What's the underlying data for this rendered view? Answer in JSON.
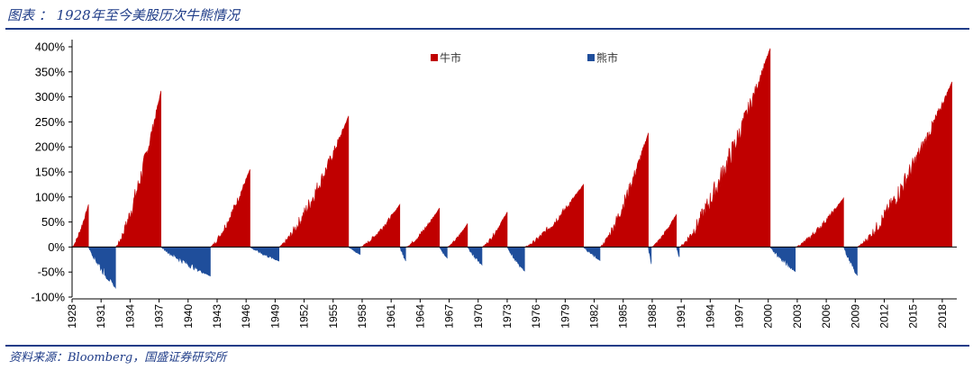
{
  "header": {
    "title": "图表 ： 1928年至今美股历次牛熊情况"
  },
  "footer": {
    "source": "资料来源：Bloomberg，国盛证券研究所"
  },
  "chart_data": {
    "type": "area",
    "title": "",
    "xlabel": "",
    "ylabel": "",
    "ylim": [
      -100,
      400
    ],
    "yticks": [
      -100,
      -50,
      0,
      50,
      100,
      150,
      200,
      250,
      300,
      350,
      400
    ],
    "ytick_labels": [
      "-100%",
      "-50%",
      "0%",
      "50%",
      "100%",
      "150%",
      "200%",
      "250%",
      "300%",
      "350%",
      "400%"
    ],
    "xlim": [
      1928,
      2019.5
    ],
    "xticks": [
      1928,
      1931,
      1934,
      1937,
      1940,
      1943,
      1946,
      1949,
      1952,
      1955,
      1958,
      1961,
      1964,
      1967,
      1970,
      1973,
      1976,
      1979,
      1982,
      1985,
      1988,
      1991,
      1994,
      1997,
      2000,
      2003,
      2006,
      2009,
      2012,
      2015,
      2018
    ],
    "legend": {
      "position": "top-center",
      "items": [
        {
          "name": "牛市",
          "color": "#c00000"
        },
        {
          "name": "熊市",
          "color": "#1f4e9b"
        }
      ]
    },
    "colors": {
      "bull": "#c00000",
      "bear": "#1f4e9b"
    },
    "series": [
      {
        "name": "牛市",
        "color": "#c00000",
        "segments": [
          {
            "start": 1928.0,
            "end": 1929.7,
            "peak": 85
          },
          {
            "start": 1932.5,
            "end": 1937.2,
            "peak": 312
          },
          {
            "start": 1942.3,
            "end": 1946.4,
            "peak": 155
          },
          {
            "start": 1949.4,
            "end": 1956.6,
            "peak": 262
          },
          {
            "start": 1957.8,
            "end": 1961.9,
            "peak": 85
          },
          {
            "start": 1962.5,
            "end": 1966.0,
            "peak": 78
          },
          {
            "start": 1966.8,
            "end": 1968.9,
            "peak": 47
          },
          {
            "start": 1970.4,
            "end": 1973.0,
            "peak": 70
          },
          {
            "start": 1974.8,
            "end": 1980.9,
            "peak": 125
          },
          {
            "start": 1982.6,
            "end": 1987.6,
            "peak": 228
          },
          {
            "start": 1987.9,
            "end": 1990.5,
            "peak": 65
          },
          {
            "start": 1990.8,
            "end": 2000.2,
            "peak": 397
          },
          {
            "start": 2002.8,
            "end": 2007.8,
            "peak": 98
          },
          {
            "start": 2009.2,
            "end": 2019.0,
            "peak": 330
          }
        ]
      },
      {
        "name": "熊市",
        "color": "#1f4e9b",
        "segments": [
          {
            "start": 1929.7,
            "end": 1932.5,
            "trough": -82
          },
          {
            "start": 1937.2,
            "end": 1942.3,
            "trough": -58
          },
          {
            "start": 1946.4,
            "end": 1949.4,
            "trough": -28
          },
          {
            "start": 1956.6,
            "end": 1957.8,
            "trough": -15
          },
          {
            "start": 1961.9,
            "end": 1962.5,
            "trough": -28
          },
          {
            "start": 1966.0,
            "end": 1966.8,
            "trough": -22
          },
          {
            "start": 1968.9,
            "end": 1970.4,
            "trough": -36
          },
          {
            "start": 1973.0,
            "end": 1974.8,
            "trough": -48
          },
          {
            "start": 1980.9,
            "end": 1982.6,
            "trough": -27
          },
          {
            "start": 1987.6,
            "end": 1987.9,
            "trough": -34
          },
          {
            "start": 1990.5,
            "end": 1990.8,
            "trough": -20
          },
          {
            "start": 2000.2,
            "end": 2002.8,
            "trough": -49
          },
          {
            "start": 2007.8,
            "end": 2009.2,
            "trough": -57
          }
        ]
      }
    ]
  }
}
